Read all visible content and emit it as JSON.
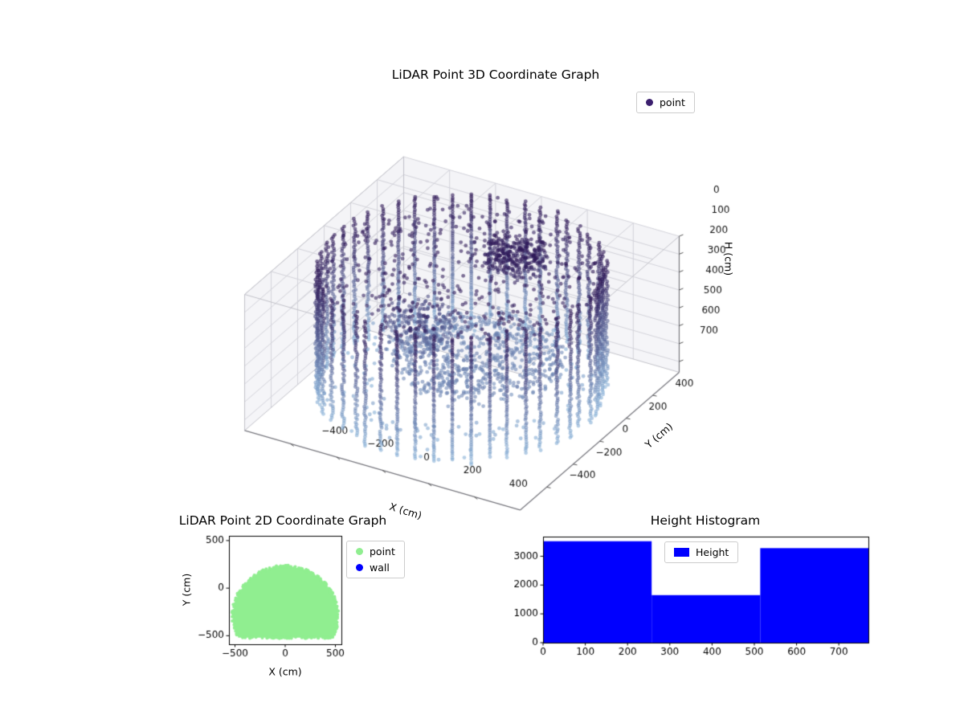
{
  "figure": {
    "background": "#ffffff"
  },
  "chart_data": [
    {
      "id": "lidar-3d",
      "type": "scatter",
      "projection": "3d",
      "title": "LiDAR Point 3D Coordinate Graph",
      "xlabel": "X (cm)",
      "ylabel": "Y (cm)",
      "zlabel": "H (cm)",
      "legend": [
        {
          "label": "point",
          "color": "#3b1f6e"
        }
      ],
      "xticks": [
        -400,
        -200,
        0,
        200,
        400
      ],
      "yticks": [
        -400,
        -200,
        0,
        200,
        400
      ],
      "zticks": [
        0,
        100,
        200,
        300,
        400,
        500,
        600,
        700
      ],
      "xlim": [
        -600,
        600
      ],
      "ylim": [
        -600,
        600
      ],
      "zlim": [
        0,
        760
      ],
      "z_axis_inverted": true,
      "view": {
        "elev_deg": 30,
        "azim_deg": -60
      },
      "colormap": {
        "by": "H",
        "h0_color": "#2c1454",
        "h700_color": "#86afd6"
      },
      "point_cloud": {
        "description": "Cylindrical room scan: vertical wall columns at discrete azimuths, dark ceiling points near H=0, light floor disk near H=520, scattered mid-height returns",
        "seed": 11,
        "marker_radius_px": 2.4,
        "alpha": 0.6,
        "wall": {
          "radius_cm": 540,
          "azimuth_columns": 48,
          "h_range": [
            0,
            700
          ],
          "h_step_cm": 13
        },
        "ceiling": {
          "points": 430,
          "radius_cm": 535,
          "h_range": [
            0,
            75
          ]
        },
        "floor": {
          "points": 720,
          "radius_cm": 330,
          "center": [
            60,
            30
          ],
          "h_range": [
            470,
            560
          ]
        },
        "clusters": [
          {
            "center": [
              85,
              250
            ],
            "radius_cm": 125,
            "h_range": [
              10,
              130
            ],
            "points": 270
          },
          {
            "center": [
              -140,
              -90
            ],
            "radius_cm": 135,
            "h_range": [
              240,
              450
            ],
            "points": 220
          }
        ],
        "lower_scatter": {
          "points": 150,
          "radius_range": [
            340,
            540
          ],
          "h_range": [
            600,
            710
          ]
        }
      }
    },
    {
      "id": "lidar-2d",
      "type": "scatter",
      "title": "LiDAR Point 2D Coordinate Graph",
      "xlabel": "X (cm)",
      "ylabel": "Y (cm)",
      "xticks": [
        -500,
        0,
        500
      ],
      "yticks": [
        -500,
        0,
        500
      ],
      "xlim": [
        -560,
        560
      ],
      "ylim": [
        -590,
        550
      ],
      "series": [
        {
          "name": "point",
          "color": "#90ee90",
          "seed": 5,
          "region": {
            "shape": "disk-clipped-below",
            "center": [
              0,
              -290
            ],
            "radius": 520,
            "min_y": -520
          }
        },
        {
          "name": "wall",
          "color": "#0000ff",
          "points_visible": 0
        }
      ]
    },
    {
      "id": "height-histogram",
      "type": "bar",
      "title": "Height Histogram",
      "legend": [
        {
          "label": "Height",
          "color": "#0000ff"
        }
      ],
      "bin_edges": [
        0,
        257,
        514,
        770
      ],
      "values": [
        3520,
        1650,
        3280
      ],
      "xticks": [
        0,
        100,
        200,
        300,
        400,
        500,
        600,
        700
      ],
      "yticks": [
        0,
        1000,
        2000,
        3000
      ],
      "xlim": [
        0,
        770
      ],
      "ylim": [
        0,
        3680
      ],
      "bar_color": "#0000ff"
    }
  ]
}
